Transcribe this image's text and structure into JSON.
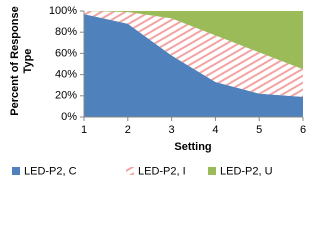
{
  "chart_data": {
    "type": "stacked-area",
    "x": [
      1,
      2,
      3,
      4,
      5,
      6
    ],
    "xlim": [
      1,
      6
    ],
    "xticks": [
      1,
      2,
      3,
      4,
      5,
      6
    ],
    "ylim": [
      0,
      100
    ],
    "yticks": [
      {
        "value": 0,
        "label": "0%"
      },
      {
        "value": 20,
        "label": "20%"
      },
      {
        "value": 40,
        "label": "40%"
      },
      {
        "value": 60,
        "label": "60%"
      },
      {
        "value": 80,
        "label": "80%"
      },
      {
        "value": 100,
        "label": "100%"
      }
    ],
    "x_label": "Setting",
    "y_label": "Percent of Response Type",
    "grid": false,
    "legend": "bottom",
    "series": [
      {
        "name": "LED-P2, C",
        "color": "#4f81bd",
        "values": [
          97,
          88,
          58,
          33,
          22,
          19
        ]
      },
      {
        "name": "LED-P2, I",
        "color": "#f4a3a3",
        "pattern": "hatch",
        "values": [
          3,
          11,
          35,
          44,
          39,
          26
        ]
      },
      {
        "name": "LED-P2, U",
        "color": "#9bbb59",
        "values": [
          0,
          1,
          7,
          23,
          39,
          55
        ]
      }
    ]
  }
}
